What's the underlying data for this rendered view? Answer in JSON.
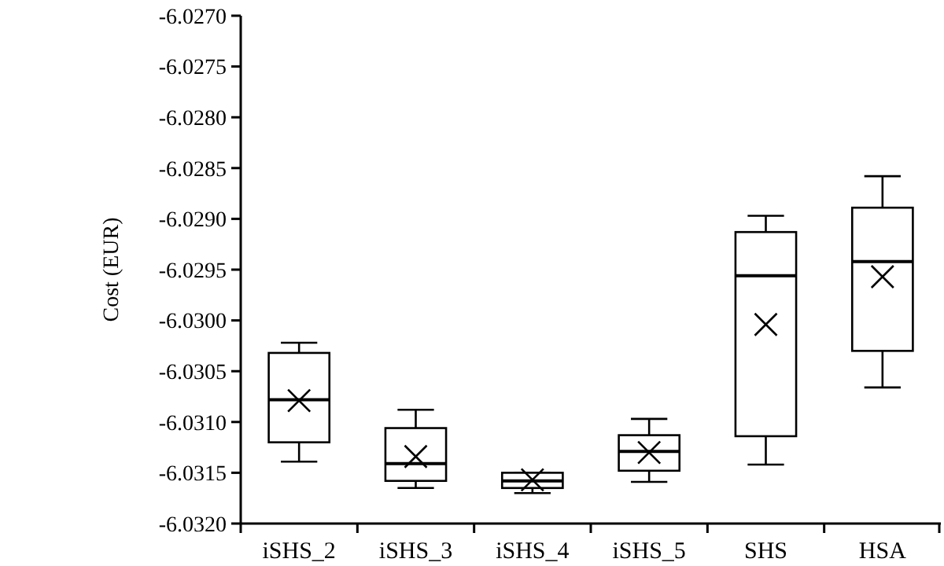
{
  "chart_data": {
    "type": "box",
    "ylabel": "Cost (EUR)",
    "categories": [
      "iSHS_2",
      "iSHS_3",
      "iSHS_4",
      "iSHS_5",
      "SHS",
      "HSA"
    ],
    "boxes": [
      {
        "low": -6.03139,
        "q1": -6.0312,
        "median": -6.03078,
        "q3": -6.03032,
        "high": -6.03022,
        "mean": -6.03079
      },
      {
        "low": -6.03165,
        "q1": -6.03158,
        "median": -6.03141,
        "q3": -6.03106,
        "high": -6.03088,
        "mean": -6.03134
      },
      {
        "low": -6.0317,
        "q1": -6.03165,
        "median": -6.03158,
        "q3": -6.0315,
        "high": -6.0315,
        "mean": -6.03157
      },
      {
        "low": -6.03159,
        "q1": -6.03148,
        "median": -6.03129,
        "q3": -6.03113,
        "high": -6.03097,
        "mean": -6.0313
      },
      {
        "low": -6.03142,
        "q1": -6.03114,
        "median": -6.02956,
        "q3": -6.02913,
        "high": -6.02897,
        "mean": -6.03004
      },
      {
        "low": -6.03066,
        "q1": -6.0303,
        "median": -6.02942,
        "q3": -6.02889,
        "high": -6.02858,
        "mean": -6.02957
      }
    ],
    "color": "#000000",
    "ylim": [
      -6.032,
      -6.027
    ],
    "yticks": [
      {
        "value": -6.032,
        "label": "-6.0320"
      },
      {
        "value": -6.0315,
        "label": "-6.0315"
      },
      {
        "value": -6.031,
        "label": "-6.0310"
      },
      {
        "value": -6.0305,
        "label": "-6.0305"
      },
      {
        "value": -6.03,
        "label": "-6.0300"
      },
      {
        "value": -6.0295,
        "label": "-6.0295"
      },
      {
        "value": -6.029,
        "label": "-6.0290"
      },
      {
        "value": -6.0285,
        "label": "-6.0285"
      },
      {
        "value": -6.028,
        "label": "-6.0280"
      },
      {
        "value": -6.0275,
        "label": "-6.0275"
      },
      {
        "value": -6.027,
        "label": "-6.0270"
      }
    ],
    "grid": false,
    "marker": "cross"
  }
}
